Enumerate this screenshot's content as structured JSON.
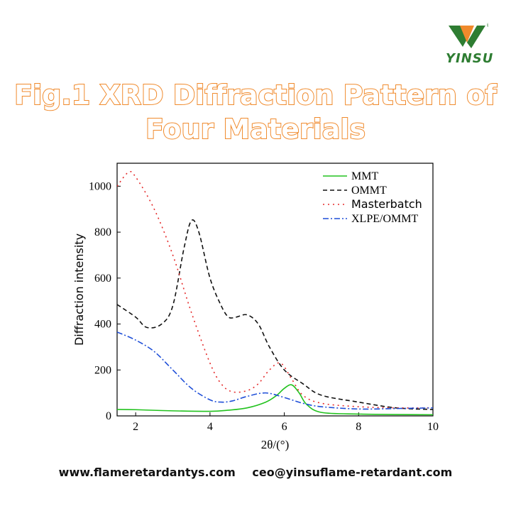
{
  "brand": {
    "name": "YINSU",
    "mark": "®",
    "colors": {
      "green": "#2e7d32",
      "orange": "#f08a2c"
    }
  },
  "title": {
    "line1": "Fig.1 XRD Diffraction Pattern of",
    "line2": "Four Materials"
  },
  "footer": {
    "website": "www.flameretardantys.com",
    "email": "ceo@yinsuflame-retardant.com"
  },
  "chart_data": {
    "type": "line",
    "xlabel": "2θ/(°)",
    "ylabel": "Diffraction intensity",
    "xlim": [
      1.5,
      10
    ],
    "ylim": [
      0,
      1100
    ],
    "xticks": [
      2,
      4,
      6,
      8,
      10
    ],
    "yticks": [
      0,
      200,
      400,
      600,
      800,
      1000
    ],
    "legend_position": "top-right",
    "series": [
      {
        "name": "MMT",
        "color": "#22c21e",
        "dash": "solid",
        "x": [
          1.5,
          2,
          3,
          4,
          4.5,
          5,
          5.5,
          5.8,
          6.0,
          6.2,
          6.4,
          6.6,
          7,
          8,
          9,
          10
        ],
        "y": [
          28,
          27,
          22,
          20,
          25,
          35,
          60,
          90,
          120,
          135,
          100,
          50,
          15,
          8,
          6,
          5
        ]
      },
      {
        "name": "OMMT",
        "color": "#111111",
        "dash": "6,4",
        "x": [
          1.5,
          2.0,
          2.3,
          2.7,
          3.0,
          3.3,
          3.5,
          3.7,
          4.0,
          4.3,
          4.5,
          4.7,
          5.0,
          5.3,
          5.6,
          6.0,
          6.5,
          7,
          8,
          9,
          10
        ],
        "y": [
          485,
          430,
          385,
          400,
          480,
          730,
          850,
          800,
          600,
          480,
          430,
          430,
          440,
          400,
          300,
          200,
          140,
          90,
          60,
          35,
          28
        ]
      },
      {
        "name": "Masterbatch",
        "color": "#e52b2b",
        "dash": "2,5",
        "x": [
          1.5,
          1.8,
          2.0,
          2.5,
          3.0,
          3.5,
          4.0,
          4.3,
          4.6,
          5.0,
          5.3,
          5.6,
          5.9,
          6.2,
          6.5,
          7,
          8,
          9,
          10
        ],
        "y": [
          1000,
          1060,
          1040,
          900,
          700,
          450,
          230,
          140,
          105,
          110,
          140,
          200,
          230,
          160,
          90,
          55,
          40,
          35,
          35
        ]
      },
      {
        "name": "XLPE/OMMT",
        "color": "#1f4fd8",
        "dash": "8,3,2,3",
        "x": [
          1.5,
          2,
          2.5,
          3,
          3.5,
          4,
          4.3,
          4.6,
          5,
          5.5,
          6,
          6.5,
          7,
          8,
          9,
          10
        ],
        "y": [
          365,
          330,
          280,
          200,
          120,
          70,
          60,
          65,
          85,
          100,
          80,
          55,
          40,
          30,
          32,
          35
        ]
      }
    ]
  }
}
